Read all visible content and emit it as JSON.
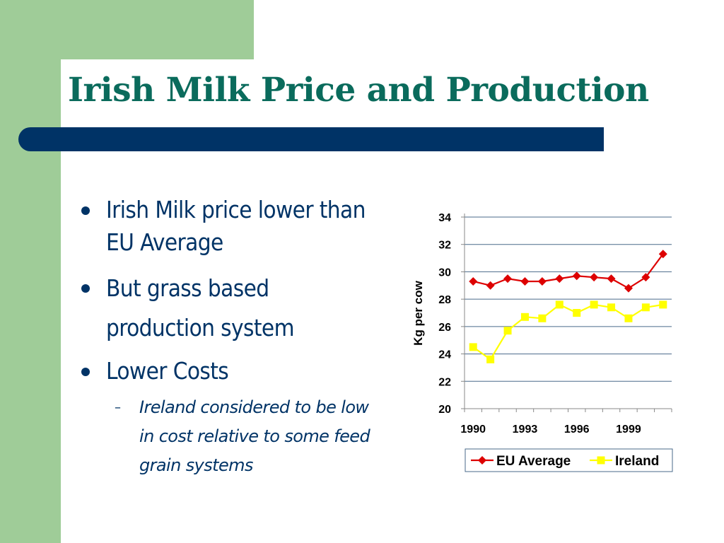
{
  "slide": {
    "title": "Irish Milk Price and Production",
    "colors": {
      "title": "#0a6b5c",
      "title_bar": "#003366",
      "text": "#003366",
      "accent_green": "#9fcc98"
    }
  },
  "bullets": [
    {
      "text": "Irish Milk price lower than EU Average"
    },
    {
      "text": "But grass based production system"
    },
    {
      "text": "Lower Costs"
    }
  ],
  "sub_bullet": {
    "marker": "–",
    "text": "Ireland considered to be low in cost relative to some feed grain systems"
  },
  "chart_data": {
    "type": "line",
    "ylabel": "Kg per cow",
    "xlabel": "",
    "ylim": [
      20,
      34
    ],
    "yticks": [
      20,
      22,
      24,
      26,
      28,
      30,
      32,
      34
    ],
    "x": [
      1990,
      1991,
      1992,
      1993,
      1994,
      1995,
      1996,
      1997,
      1998,
      1999,
      2000,
      2001
    ],
    "xtick_labels": [
      "1990",
      "1993",
      "1996",
      "1999"
    ],
    "xtick_values": [
      1990,
      1993,
      1996,
      1999
    ],
    "grid": true,
    "legend": "bottom",
    "series": [
      {
        "name": "EU Average",
        "color": "#dd0000",
        "marker": "diamond",
        "values": [
          29.3,
          29.0,
          29.5,
          29.3,
          29.3,
          29.5,
          29.7,
          29.6,
          29.5,
          28.8,
          29.6,
          31.3
        ]
      },
      {
        "name": "Ireland",
        "color": "#ffff00",
        "marker": "square",
        "values": [
          24.5,
          23.6,
          25.7,
          26.7,
          26.6,
          27.6,
          27.0,
          27.6,
          27.4,
          26.6,
          27.4,
          27.6
        ]
      }
    ]
  }
}
